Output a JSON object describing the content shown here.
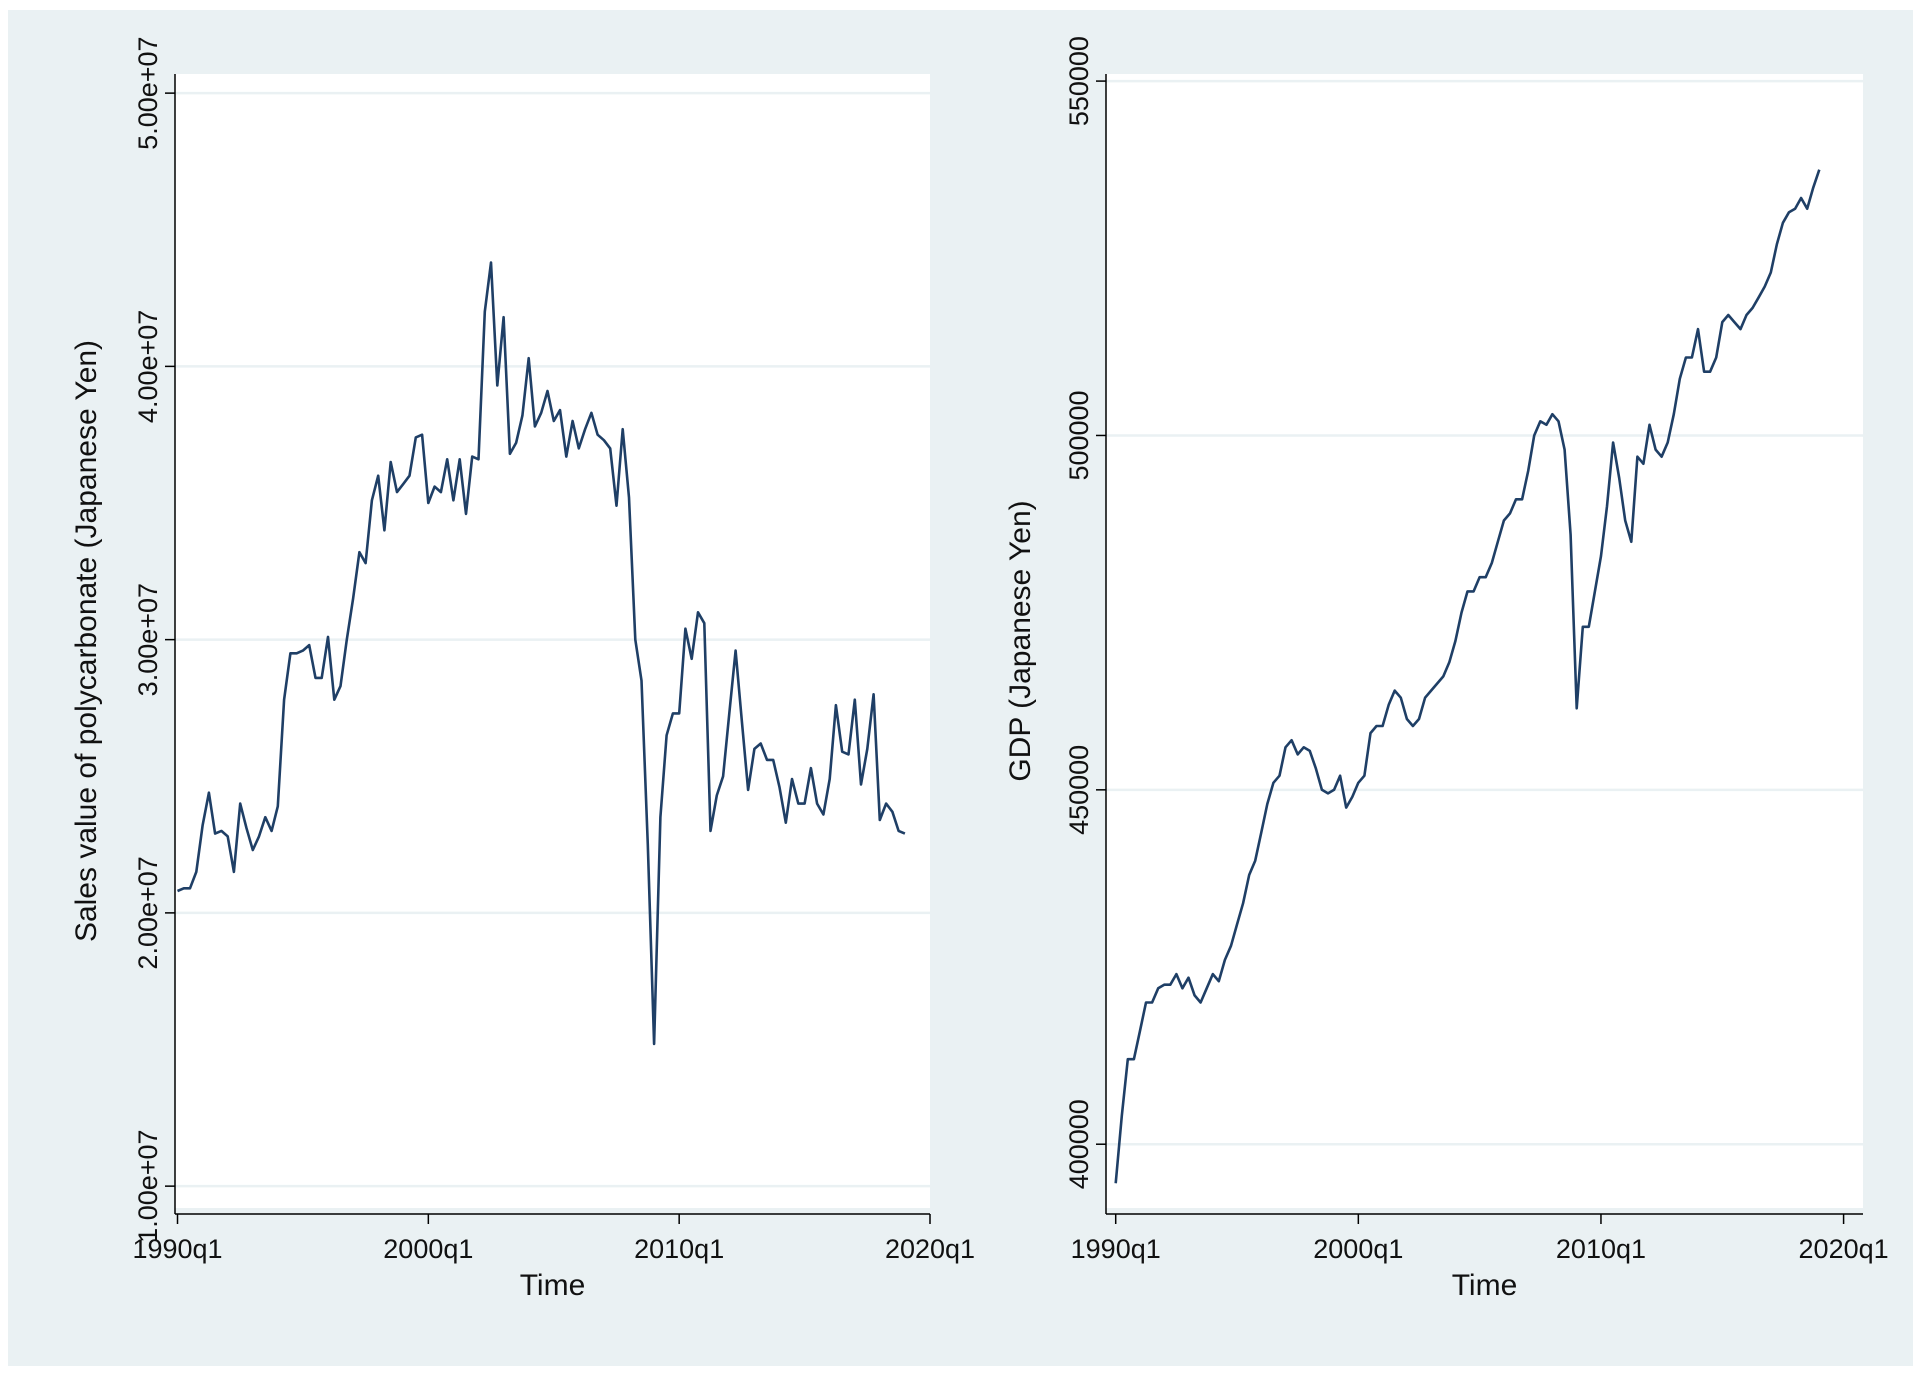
{
  "colors": {
    "background": "#eaf1f3",
    "plot_area": "#ffffff",
    "series_line": "#1f3f66",
    "gridline": "#eaf1f3",
    "axis": "#000000"
  },
  "chart_data": [
    {
      "type": "line",
      "xlabel": "Time",
      "ylabel": "Sales value of polycarbonate (Japanese Yen)",
      "x_ticks": [
        1990,
        2000,
        2010,
        2020
      ],
      "x_tick_labels": [
        "1990q1",
        "2000q1",
        "2010q1",
        "2020q1"
      ],
      "y_ticks": [
        10000000,
        20000000,
        30000000,
        40000000,
        50000000
      ],
      "y_tick_labels": [
        "1.00e+07",
        "2.00e+07",
        "3.00e+07",
        "4.00e+07",
        "5.00e+07"
      ],
      "xlim": [
        1989.9,
        2020.0
      ],
      "ylim": [
        9200000,
        50700000
      ],
      "grid": true,
      "legend": "none",
      "series": [
        {
          "x": [
            1990.0,
            1990.25,
            1990.5,
            1990.75,
            1991.0,
            1991.25,
            1991.5,
            1991.75,
            1992.0,
            1992.25,
            1992.5,
            1992.75,
            1993.0,
            1993.25,
            1993.5,
            1993.75,
            1994.0,
            1994.25,
            1994.5,
            1994.75,
            1995.0,
            1995.25,
            1995.5,
            1995.75,
            1996.0,
            1996.25,
            1996.5,
            1996.75,
            1997.0,
            1997.25,
            1997.5,
            1997.75,
            1998.0,
            1998.25,
            1998.5,
            1998.75,
            1999.0,
            1999.25,
            1999.5,
            1999.75,
            2000.0,
            2000.25,
            2000.5,
            2000.75,
            2001.0,
            2001.25,
            2001.5,
            2001.75,
            2002.0,
            2002.25,
            2002.5,
            2002.75,
            2003.0,
            2003.25,
            2003.5,
            2003.75,
            2004.0,
            2004.25,
            2004.5,
            2004.75,
            2005.0,
            2005.25,
            2005.5,
            2005.75,
            2006.0,
            2006.25,
            2006.5,
            2006.75,
            2007.0,
            2007.25,
            2007.5,
            2007.75,
            2008.0,
            2008.25,
            2008.5,
            2008.75,
            2009.0,
            2009.25,
            2009.5,
            2009.75,
            2010.0,
            2010.25,
            2010.5,
            2010.75,
            2011.0,
            2011.25,
            2011.5,
            2011.75,
            2012.0,
            2012.25,
            2012.5,
            2012.75,
            2013.0,
            2013.25,
            2013.5,
            2013.75,
            2014.0,
            2014.25,
            2014.5,
            2014.75,
            2015.0,
            2015.25,
            2015.5,
            2015.75,
            2016.0,
            2016.25,
            2016.5,
            2016.75,
            2017.0,
            2017.25,
            2017.5,
            2017.75,
            2018.0,
            2018.25,
            2018.5,
            2018.75,
            2019.0
          ],
          "y": [
            20800000,
            20900000,
            20900000,
            21500000,
            23200000,
            24400000,
            22900000,
            23000000,
            22800000,
            21500000,
            24000000,
            23100000,
            22300000,
            22800000,
            23500000,
            23000000,
            23900000,
            27800000,
            29500000,
            29500000,
            29600000,
            29800000,
            28600000,
            28600000,
            30100000,
            27800000,
            28300000,
            30000000,
            31500000,
            33200000,
            32800000,
            35100000,
            36000000,
            34000000,
            36500000,
            35400000,
            35700000,
            36000000,
            37400000,
            37500000,
            35000000,
            35600000,
            35400000,
            36600000,
            35100000,
            36600000,
            34600000,
            36700000,
            36600000,
            42000000,
            43800000,
            39300000,
            41800000,
            36800000,
            37200000,
            38200000,
            40300000,
            37800000,
            38300000,
            39100000,
            38000000,
            38400000,
            36700000,
            38000000,
            37000000,
            37700000,
            38300000,
            37500000,
            37300000,
            37000000,
            34900000,
            37700000,
            35200000,
            30000000,
            28500000,
            22500000,
            15200000,
            23500000,
            26500000,
            27300000,
            27300000,
            30400000,
            29300000,
            31000000,
            30600000,
            23000000,
            24300000,
            25000000,
            27300000,
            29600000,
            27000000,
            24500000,
            26000000,
            26200000,
            25600000,
            25600000,
            24600000,
            23300000,
            24900000,
            24000000,
            24000000,
            25300000,
            24000000,
            23600000,
            24900000,
            27600000,
            25900000,
            25800000,
            27800000,
            24700000,
            26000000,
            28000000,
            23400000,
            24000000,
            23700000,
            23000000,
            22900000
          ]
        }
      ]
    },
    {
      "type": "line",
      "xlabel": "Time",
      "ylabel": "GDP (Japanese Yen)",
      "x_ticks": [
        1990,
        2000,
        2010,
        2020
      ],
      "x_tick_labels": [
        "1990q1",
        "2000q1",
        "2010q1",
        "2020q1"
      ],
      "y_ticks": [
        400000,
        450000,
        500000,
        550000
      ],
      "y_tick_labels": [
        "400000",
        "450000",
        "500000",
        "550000"
      ],
      "xlim": [
        1989.6,
        2020.8
      ],
      "ylim": [
        391000,
        551000
      ],
      "grid": true,
      "legend": "none",
      "series": [
        {
          "x": [
            1990.0,
            1990.25,
            1990.5,
            1990.75,
            1991.0,
            1991.25,
            1991.5,
            1991.75,
            1992.0,
            1992.25,
            1992.5,
            1992.75,
            1993.0,
            1993.25,
            1993.5,
            1993.75,
            1994.0,
            1994.25,
            1994.5,
            1994.75,
            1995.0,
            1995.25,
            1995.5,
            1995.75,
            1996.0,
            1996.25,
            1996.5,
            1996.75,
            1997.0,
            1997.25,
            1997.5,
            1997.75,
            1998.0,
            1998.25,
            1998.5,
            1998.75,
            1999.0,
            1999.25,
            1999.5,
            1999.75,
            2000.0,
            2000.25,
            2000.5,
            2000.75,
            2001.0,
            2001.25,
            2001.5,
            2001.75,
            2002.0,
            2002.25,
            2002.5,
            2002.75,
            2003.0,
            2003.25,
            2003.5,
            2003.75,
            2004.0,
            2004.25,
            2004.5,
            2004.75,
            2005.0,
            2005.25,
            2005.5,
            2005.75,
            2006.0,
            2006.25,
            2006.5,
            2006.75,
            2007.0,
            2007.25,
            2007.5,
            2007.75,
            2008.0,
            2008.25,
            2008.5,
            2008.75,
            2009.0,
            2009.25,
            2009.5,
            2009.75,
            2010.0,
            2010.25,
            2010.5,
            2010.75,
            2011.0,
            2011.25,
            2011.5,
            2011.75,
            2012.0,
            2012.25,
            2012.5,
            2012.75,
            2013.0,
            2013.25,
            2013.5,
            2013.75,
            2014.0,
            2014.25,
            2014.5,
            2014.75,
            2015.0,
            2015.25,
            2015.5,
            2015.75,
            2016.0,
            2016.25,
            2016.5,
            2016.75,
            2017.0,
            2017.25,
            2017.5,
            2017.75,
            2018.0,
            2018.25,
            2018.5,
            2018.75,
            2019.0
          ],
          "y": [
            394500,
            404000,
            412000,
            412000,
            416000,
            420000,
            420000,
            422000,
            422500,
            422500,
            424000,
            422000,
            423500,
            421000,
            420000,
            422000,
            424000,
            423000,
            426000,
            428000,
            431000,
            434000,
            438000,
            440000,
            444000,
            448000,
            451000,
            452000,
            456000,
            457000,
            455000,
            456000,
            455500,
            453000,
            450000,
            449500,
            450000,
            452000,
            447500,
            449000,
            451000,
            452000,
            458000,
            459000,
            459000,
            462000,
            464000,
            463000,
            460000,
            459000,
            460000,
            463000,
            464000,
            465000,
            466000,
            468000,
            471000,
            475000,
            478000,
            478000,
            480000,
            480000,
            482000,
            485000,
            488000,
            489000,
            491000,
            491000,
            495000,
            500000,
            502000,
            501500,
            503000,
            502000,
            498000,
            486000,
            461500,
            473000,
            473000,
            478000,
            483000,
            490000,
            499000,
            494000,
            488000,
            485000,
            497000,
            496000,
            501500,
            498000,
            497000,
            499000,
            503000,
            508000,
            511000,
            511000,
            515000,
            509000,
            509000,
            511000,
            516000,
            517000,
            516000,
            515000,
            517000,
            518000,
            519500,
            521000,
            523000,
            527000,
            530000,
            531500,
            532000,
            533500,
            532000,
            535000,
            537500
          ]
        }
      ]
    }
  ]
}
